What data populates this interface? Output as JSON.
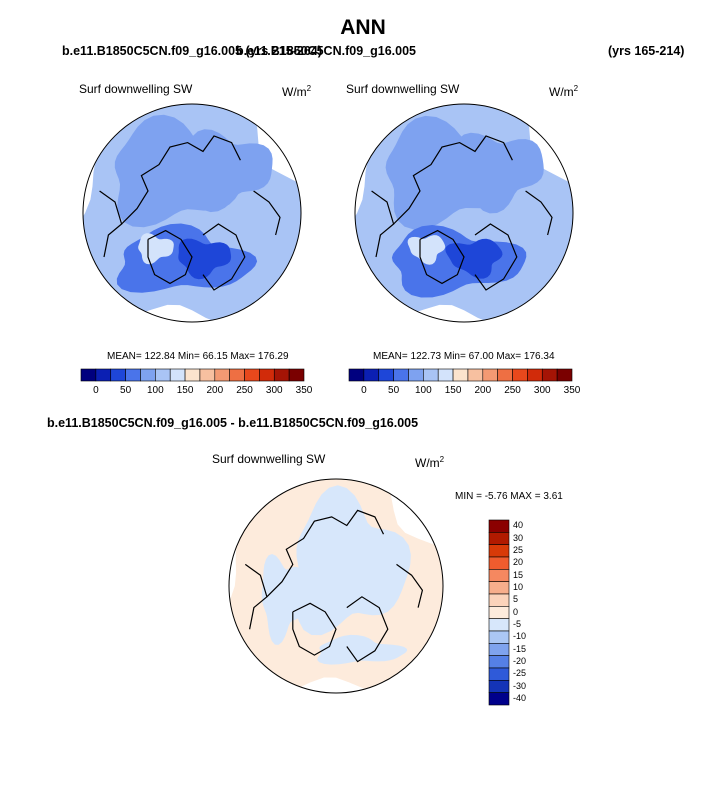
{
  "page": {
    "title": "ANN",
    "case_left": "b.e11.B1850C5CN.f09_g16.005 (yrs 215-264)",
    "case_right": "b.e11.B1850C5CN.f09_g16.005",
    "years_right": "(yrs 165-214)",
    "diff_title": "b.e11.B1850C5CN.f09_g16.005 - b.e11.B1850C5CN.f09_g16.005"
  },
  "chart_data": [
    {
      "type": "heatmap",
      "projection": "north-polar-stereographic",
      "variable": "Surf downwelling SW",
      "units": "W/m",
      "units_exp": "2",
      "stats": "MEAN= 122.84  Min=  66.15  Max= 176.29",
      "mean": 122.84,
      "min": 66.15,
      "max": 176.29,
      "colorbar": {
        "orientation": "horizontal",
        "levels": [
          0,
          25,
          50,
          75,
          100,
          125,
          150,
          175,
          200,
          225,
          250,
          275,
          300,
          325,
          350
        ],
        "tick_labels": [
          "0",
          "50",
          "100",
          "150",
          "200",
          "250",
          "300",
          "350"
        ],
        "colors": [
          "#00007f",
          "#0b1fb3",
          "#1e46d8",
          "#4a74ea",
          "#7ea2f0",
          "#a9c4f5",
          "#d3e3fb",
          "#fbe3cd",
          "#f7c0a0",
          "#f39a73",
          "#ee6f43",
          "#e8481c",
          "#d12b0a",
          "#a51405",
          "#7a0000"
        ]
      }
    },
    {
      "type": "heatmap",
      "projection": "north-polar-stereographic",
      "variable": "Surf downwelling SW",
      "units": "W/m",
      "units_exp": "2",
      "stats": "MEAN= 122.73  Min=  67.00  Max= 176.34",
      "mean": 122.73,
      "min": 67.0,
      "max": 176.34,
      "colorbar": {
        "orientation": "horizontal",
        "levels": [
          0,
          25,
          50,
          75,
          100,
          125,
          150,
          175,
          200,
          225,
          250,
          275,
          300,
          325,
          350
        ],
        "tick_labels": [
          "0",
          "50",
          "100",
          "150",
          "200",
          "250",
          "300",
          "350"
        ],
        "colors": [
          "#00007f",
          "#0b1fb3",
          "#1e46d8",
          "#4a74ea",
          "#7ea2f0",
          "#a9c4f5",
          "#d3e3fb",
          "#fbe3cd",
          "#f7c0a0",
          "#f39a73",
          "#ee6f43",
          "#e8481c",
          "#d12b0a",
          "#a51405",
          "#7a0000"
        ]
      }
    },
    {
      "type": "heatmap",
      "projection": "north-polar-stereographic",
      "variable": "Surf downwelling SW",
      "units": "W/m",
      "units_exp": "2",
      "stats": "MIN =  -5.76 MAX =   3.61",
      "min": -5.76,
      "max": 3.61,
      "colorbar": {
        "orientation": "vertical",
        "levels": [
          -40,
          -30,
          -25,
          -20,
          -15,
          -10,
          -5,
          0,
          5,
          10,
          15,
          20,
          25,
          30,
          40
        ],
        "tick_labels": [
          "40",
          "30",
          "25",
          "20",
          "15",
          "10",
          "5",
          "0",
          "-5",
          "-10",
          "-15",
          "-20",
          "-25",
          "-30",
          "-40"
        ],
        "colors": [
          "#8b0000",
          "#b11a00",
          "#d83a08",
          "#ef5c2e",
          "#f58860",
          "#f7ae8c",
          "#fbd3bb",
          "#fdebdc",
          "#d7e7fb",
          "#abc7f4",
          "#7fa3ee",
          "#5580e6",
          "#2f5ad9",
          "#1434b7",
          "#00008b"
        ]
      }
    }
  ]
}
